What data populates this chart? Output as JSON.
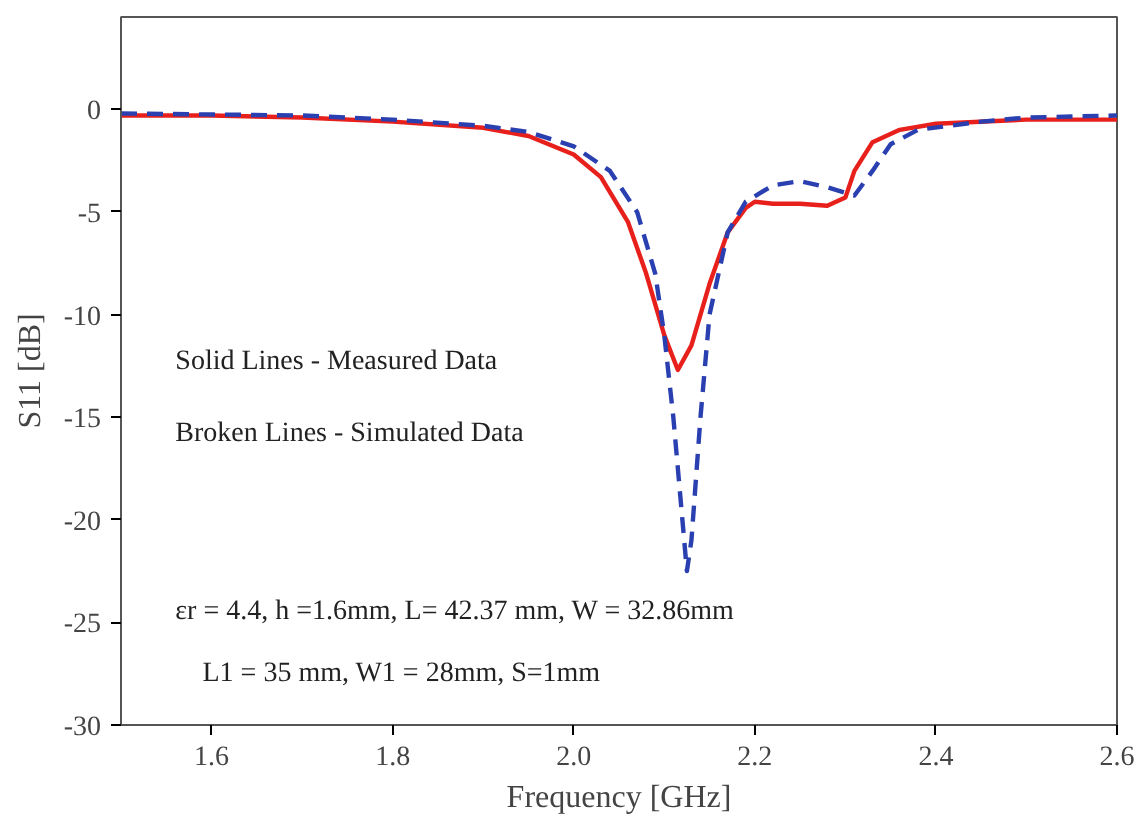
{
  "chart_data": {
    "type": "line",
    "xlabel": "Frequency [GHz]",
    "ylabel": "S11 [dB]",
    "xlim": [
      1.5,
      2.6
    ],
    "xticks": [
      {
        "value": 1.6,
        "label": "1.6"
      },
      {
        "value": 1.8,
        "label": "1.8"
      },
      {
        "value": 2.0,
        "label": "2.0"
      },
      {
        "value": 2.2,
        "label": "2.2"
      },
      {
        "value": 2.4,
        "label": "2.4"
      },
      {
        "value": 2.6,
        "label": "2.6"
      }
    ],
    "ylim": [
      -30,
      4.5
    ],
    "yticks": [
      -30,
      -25,
      -20,
      -15,
      -10,
      -5,
      0
    ],
    "grid": false,
    "marker": "none",
    "series": [
      {
        "color": "#e8201c",
        "line_style": "solid",
        "x": [
          1.5,
          1.6,
          1.7,
          1.8,
          1.9,
          1.95,
          2.0,
          2.03,
          2.06,
          2.08,
          2.1,
          2.115,
          2.13,
          2.15,
          2.17,
          2.19,
          2.2,
          2.22,
          2.25,
          2.28,
          2.3,
          2.31,
          2.33,
          2.36,
          2.4,
          2.5,
          2.6
        ],
        "values": [
          -0.3,
          -0.3,
          -0.4,
          -0.6,
          -0.9,
          -1.3,
          -2.2,
          -3.3,
          -5.5,
          -8,
          -11,
          -12.7,
          -11.5,
          -8.5,
          -6,
          -4.8,
          -4.5,
          -4.6,
          -4.6,
          -4.7,
          -4.3,
          -3,
          -1.6,
          -1.0,
          -0.7,
          -0.5,
          -0.5
        ]
      },
      {
        "color": "#2a3fb0",
        "line_style": "dashed",
        "x": [
          1.5,
          1.7,
          1.8,
          1.9,
          1.95,
          2.0,
          2.04,
          2.07,
          2.09,
          2.1,
          2.11,
          2.12,
          2.125,
          2.13,
          2.14,
          2.15,
          2.17,
          2.19,
          2.22,
          2.25,
          2.28,
          2.31,
          2.33,
          2.35,
          2.38,
          2.45,
          2.5,
          2.6
        ],
        "values": [
          -0.2,
          -0.3,
          -0.5,
          -0.8,
          -1.1,
          -1.8,
          -3,
          -5,
          -8,
          -11,
          -15,
          -20,
          -22.5,
          -21,
          -15,
          -10,
          -6,
          -4.5,
          -3.7,
          -3.5,
          -3.8,
          -4.2,
          -3,
          -1.7,
          -1.0,
          -0.6,
          -0.4,
          -0.3
        ]
      }
    ],
    "annotations": [
      "Solid Lines - Measured Data",
      "Broken Lines - Simulated Data",
      "εr = 4.4, h =1.6mm, L= 42.37 mm, W = 32.86mm",
      "L1 = 35 mm, W1 = 28mm, S=1mm"
    ]
  }
}
